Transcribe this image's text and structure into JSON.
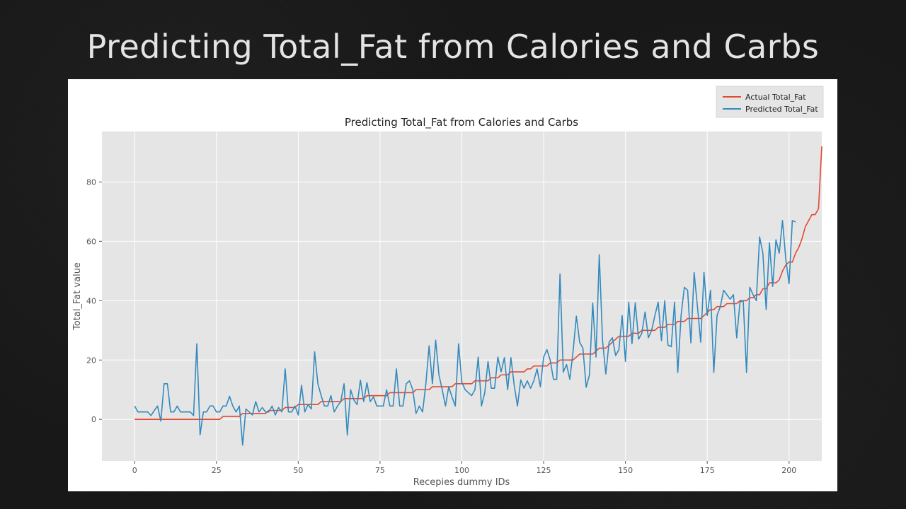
{
  "slide": {
    "title": "Predicting Total_Fat from Calories and Carbs"
  },
  "chart_data": {
    "type": "line",
    "title": "Predicting Total_Fat from Calories and Carbs",
    "xlabel": "Recepies dummy IDs",
    "ylabel": "Total_Fat value",
    "xlim": [
      -10,
      210
    ],
    "ylim": [
      -14,
      97
    ],
    "xticks": [
      0,
      25,
      50,
      75,
      100,
      125,
      150,
      175,
      200
    ],
    "yticks": [
      0,
      20,
      40,
      60,
      80
    ],
    "grid": true,
    "legend_position": "top-right",
    "series": [
      {
        "name": "Actual Total_Fat",
        "color": "#e24a33",
        "values": [
          0,
          0,
          0,
          0,
          0,
          0,
          0,
          0,
          0,
          0,
          0,
          0,
          0,
          0,
          0,
          0,
          0,
          0,
          0,
          0,
          0,
          0,
          0,
          0,
          0,
          0,
          0,
          1,
          1,
          1,
          1,
          1,
          1,
          2,
          2,
          2,
          2,
          2,
          2,
          2,
          2,
          3,
          3,
          3,
          3,
          3,
          4,
          4,
          4,
          4,
          5,
          5,
          5,
          5,
          5,
          5,
          5,
          6,
          6,
          6,
          6,
          6,
          6,
          6,
          7,
          7,
          7,
          7,
          7,
          7,
          7,
          8,
          8,
          8,
          8,
          8,
          8,
          8,
          9,
          9,
          9,
          9,
          9,
          9,
          9,
          9,
          10,
          10,
          10,
          10,
          10,
          11,
          11,
          11,
          11,
          11,
          11,
          11,
          12,
          12,
          12,
          12,
          12,
          12,
          13,
          13,
          13,
          13,
          13,
          14,
          14,
          14,
          15,
          15,
          15,
          16,
          16,
          16,
          16,
          16,
          17,
          17,
          18,
          18,
          18,
          18,
          18,
          19,
          19,
          19,
          20,
          20,
          20,
          20,
          20,
          21,
          22,
          22,
          22,
          22,
          22,
          23,
          24,
          24,
          24,
          25,
          26,
          27,
          28,
          28,
          28,
          28,
          29,
          29,
          29,
          30,
          30,
          30,
          30,
          30,
          31,
          31,
          31,
          32,
          32,
          32,
          33,
          33,
          33,
          34,
          34,
          34,
          34,
          34,
          35,
          36,
          37,
          37,
          38,
          38,
          38,
          39,
          39,
          39,
          39,
          40,
          40,
          40,
          41,
          41,
          42,
          42,
          44,
          44,
          46,
          46,
          46,
          47,
          50,
          52,
          53,
          53,
          56,
          58,
          61,
          65,
          67,
          69,
          69,
          71,
          92
        ]
      },
      {
        "name": "Predicted Total_Fat",
        "color": "#348abd",
        "values": [
          4.5,
          2.5,
          2.5,
          2.5,
          2.5,
          1.3,
          3.0,
          4.5,
          -0.6,
          12,
          12,
          2.5,
          2.5,
          4.5,
          2.5,
          2.5,
          2.5,
          2.5,
          1.3,
          25.5,
          -5.2,
          2.5,
          2.5,
          4.5,
          4.5,
          2.5,
          2.5,
          4.5,
          4.5,
          7.8,
          4.5,
          2.5,
          4.5,
          -8.7,
          3.5,
          2.5,
          1.5,
          6,
          2.5,
          4,
          2.5,
          2.5,
          4.5,
          1.5,
          4,
          2.5,
          17,
          2.5,
          2.5,
          4.5,
          1.5,
          11.5,
          2.5,
          5,
          3.5,
          22.8,
          12,
          8,
          4.5,
          4.5,
          8,
          2.5,
          4.5,
          6,
          12,
          -5.3,
          10,
          6.5,
          5,
          13.2,
          6,
          12.4,
          6,
          7.6,
          4.5,
          4.5,
          4.5,
          10,
          4.5,
          4.5,
          17,
          4.5,
          4.5,
          12,
          13,
          10,
          2,
          4.5,
          2.5,
          12,
          24.8,
          12,
          26.7,
          15,
          10,
          4.5,
          11,
          7.5,
          4.5,
          25.5,
          12.5,
          10,
          9,
          8,
          10,
          21,
          4.5,
          9,
          19.5,
          10.5,
          10.5,
          21,
          16,
          20.8,
          10,
          20.8,
          11.5,
          4.5,
          13.3,
          10.5,
          13,
          10.5,
          13,
          17,
          11,
          21,
          23.5,
          20,
          13.5,
          13.5,
          49,
          15.9,
          18.5,
          13.5,
          23,
          34.8,
          26,
          24,
          10.8,
          15,
          39.2,
          21,
          55.5,
          26.5,
          15.3,
          26,
          27.5,
          21.5,
          23.5,
          35,
          19.5,
          39.5,
          25.5,
          39.3,
          27,
          29,
          36.2,
          27.5,
          30,
          35,
          39.5,
          26.5,
          40,
          25,
          24.5,
          39.5,
          15.8,
          35,
          44.5,
          43.5,
          25.8,
          49.5,
          38,
          26,
          49.5,
          35,
          43.5,
          15.8,
          35,
          38,
          43.5,
          42,
          40.5,
          42,
          27.5,
          39.5,
          40,
          15.8,
          44.5,
          42,
          40,
          61.5,
          56,
          37,
          59.5,
          44.8,
          60.5,
          56,
          67,
          54,
          45.7,
          67,
          66.5
        ]
      }
    ]
  }
}
